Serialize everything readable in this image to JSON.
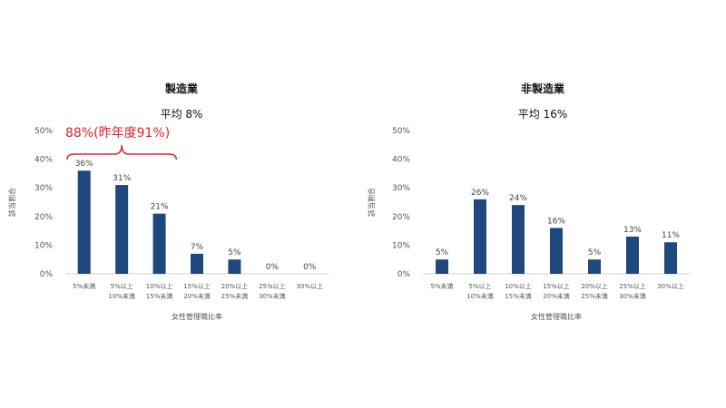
{
  "chart_data": [
    {
      "type": "bar",
      "title": "製造業",
      "subtitle": "平均  8%",
      "categories": [
        [
          "5%未満"
        ],
        [
          "5%以上",
          "10%未満"
        ],
        [
          "10%以上",
          "15%未満"
        ],
        [
          "15%以上",
          "20%未満"
        ],
        [
          "20%以上",
          "25%未満"
        ],
        [
          "25%以上",
          "30%未満"
        ],
        [
          "30%以上"
        ]
      ],
      "values": [
        36,
        31,
        21,
        7,
        5,
        0,
        0
      ],
      "value_labels": [
        "36%",
        "31%",
        "21%",
        "7%",
        "5%",
        "0%",
        "0%"
      ],
      "xlabel": "女性管理職比率",
      "ylabel": "該当割合",
      "ylim": [
        0,
        50
      ],
      "yticks": [
        0,
        10,
        20,
        30,
        40,
        50
      ],
      "ytick_labels": [
        "0%",
        "10%",
        "20%",
        "30%",
        "40%",
        "50%"
      ],
      "grid": false,
      "bar_color": "#1f497d",
      "annotation": {
        "text": "88%(昨年度91%)",
        "color": "#e8202a",
        "spans_categories": [
          0,
          2
        ]
      }
    },
    {
      "type": "bar",
      "title": "非製造業",
      "subtitle": "平均  16%",
      "categories": [
        [
          "5%未満"
        ],
        [
          "5%以上",
          "10%未満"
        ],
        [
          "10%以上",
          "15%未満"
        ],
        [
          "15%以上",
          "20%未満"
        ],
        [
          "20%以上",
          "25%未満"
        ],
        [
          "25%以上",
          "30%未満"
        ],
        [
          "30%以上"
        ]
      ],
      "values": [
        5,
        26,
        24,
        16,
        5,
        13,
        11
      ],
      "value_labels": [
        "5%",
        "26%",
        "24%",
        "16%",
        "5%",
        "13%",
        "11%"
      ],
      "xlabel": "女性管理職比率",
      "ylabel": "該当割合",
      "ylim": [
        0,
        50
      ],
      "yticks": [
        0,
        10,
        20,
        30,
        40,
        50
      ],
      "ytick_labels": [
        "0%",
        "10%",
        "20%",
        "30%",
        "40%",
        "50%"
      ],
      "grid": false,
      "bar_color": "#1f497d"
    }
  ]
}
